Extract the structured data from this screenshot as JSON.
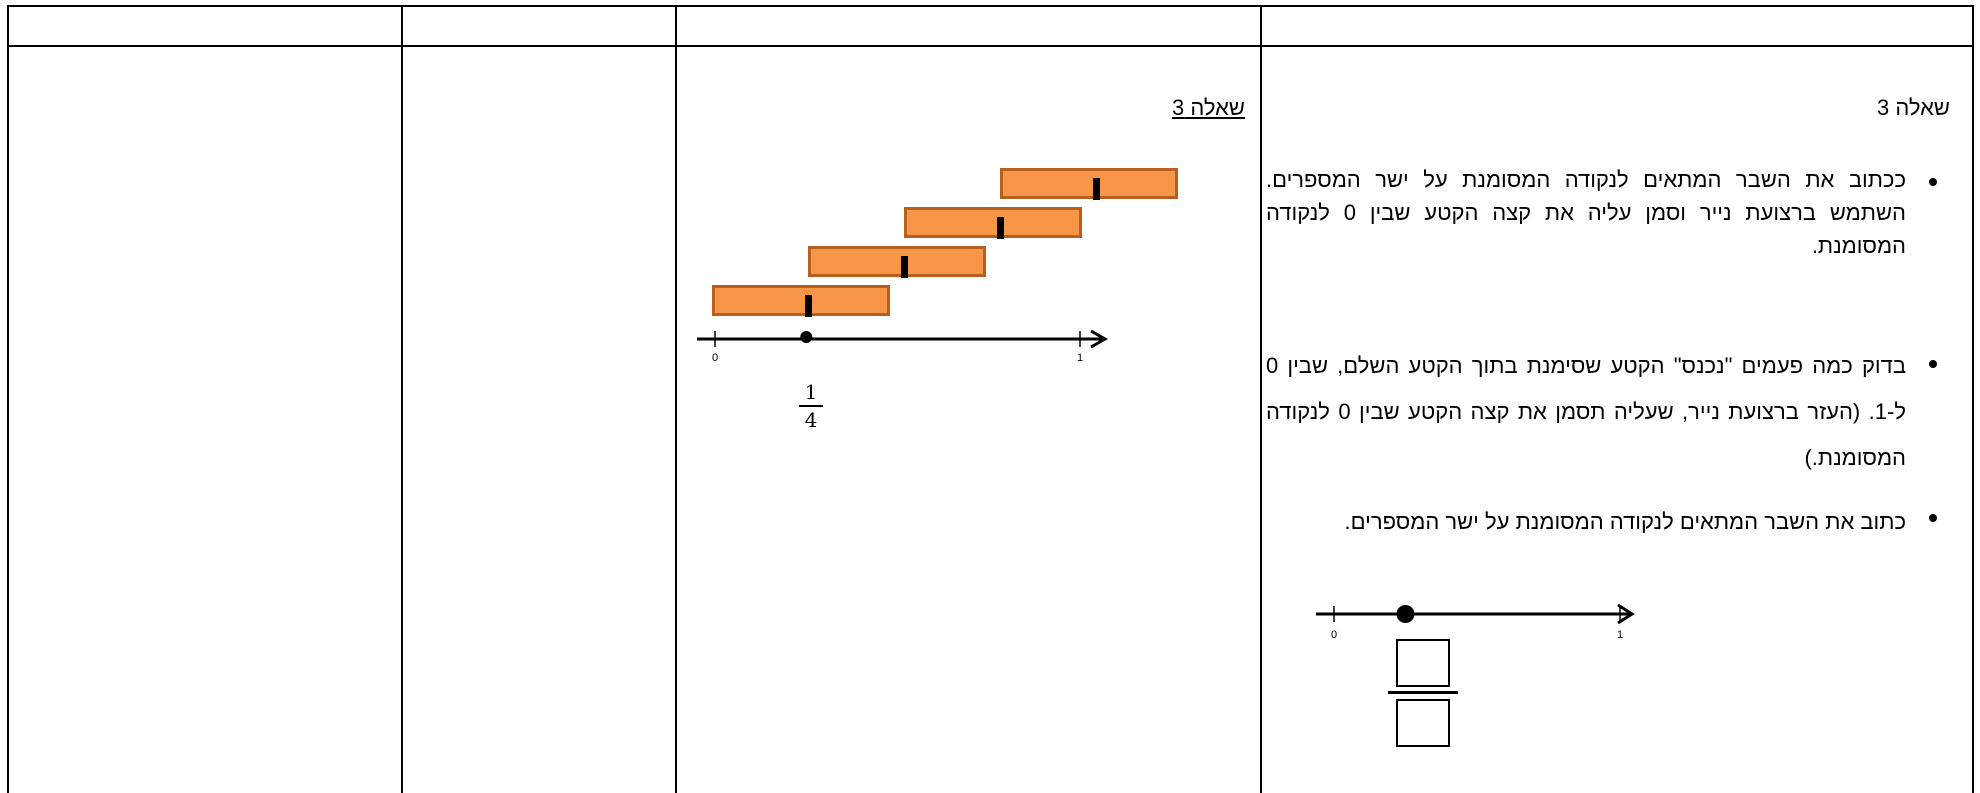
{
  "question": {
    "heading": "שאלה 3",
    "bullets": [
      "ככתוב את השבר המתאים לנקודה המסומנת על ישר המספרים. השתמש ברצועת נייר וסמן עליה את קצה הקטע שבין 0 לנקודה המסומנת.",
      "בדוק כמה פעמים \"נכנס\" הקטע שסימנת בתוך הקטע השלם, שבין 0 ל-1. (העזר ברצועת נייר, שעליה תסמן את קצה הקטע שבין 0 לנקודה המסומנת.)",
      "כתוב את השבר המתאים לנקודה המסומנת על ישר המספרים."
    ],
    "numberline": {
      "start_label": "0",
      "end_label": "1",
      "point_value": 0.25
    }
  },
  "answer": {
    "heading": "שאלה 3",
    "numberline": {
      "start_label": "0",
      "end_label": "1",
      "point_value": 0.25
    },
    "fraction": {
      "numerator": "1",
      "denominator": "4"
    },
    "strip_count": 4
  },
  "colors": {
    "strip_fill": "#f79646",
    "strip_border": "#b85f1f"
  }
}
